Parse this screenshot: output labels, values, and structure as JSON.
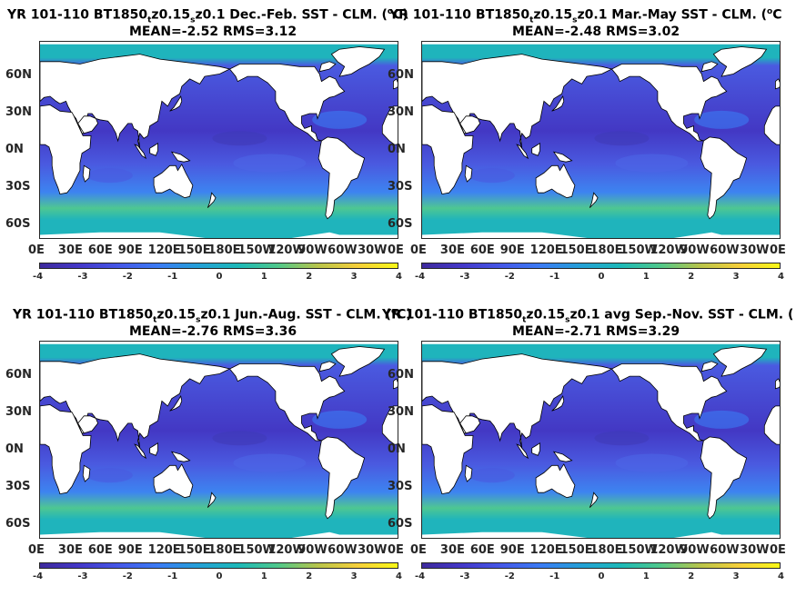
{
  "panels": [
    {
      "title_a": "YR 101-110 BT1850",
      "title_sub1": "t",
      "title_b": "z0.15",
      "title_sub2": "s",
      "title_c": "z0.1  Dec.-Feb. SST - CLM. (",
      "title_sup": "o",
      "title_d": "C)",
      "stats": "MEAN=-2.52   RMS=3.12"
    },
    {
      "title_a": "YR 101-110 BT1850",
      "title_sub1": "t",
      "title_b": "z0.15",
      "title_sub2": "s",
      "title_c": "z0.1 Mar.-May SST - CLM. (",
      "title_sup": "o",
      "title_d": "C",
      "stats": "MEAN=-2.48   RMS=3.02"
    },
    {
      "title_a": "YR 101-110 BT1850",
      "title_sub1": "t",
      "title_b": "z0.15",
      "title_sub2": "s",
      "title_c": "z0.1 Jun.-Aug. SST - CLM. (",
      "title_sup": "o",
      "title_d": "C)",
      "stats": "MEAN=-2.76   RMS=3.36"
    },
    {
      "title_a": "YR 101-110 BT1850",
      "title_sub1": "t",
      "title_b": "z0.15",
      "title_sub2": "s",
      "title_c": "z0.1 avg Sep.-Nov. SST - CLM. (",
      "title_sup": "",
      "title_d": "",
      "stats": "MEAN=-2.71   RMS=3.29"
    }
  ],
  "y_ticks": [
    "60N",
    "30N",
    "0N",
    "30S",
    "60S"
  ],
  "x_ticks": [
    "0E",
    "30E",
    "60E",
    "90E",
    "120E",
    "150E",
    "180E",
    "150W",
    "120W",
    "90W",
    "60W",
    "30W",
    "0E"
  ],
  "colorbar": {
    "ticks": [
      "-4",
      "-3",
      "-2",
      "-1",
      "0",
      "1",
      "2",
      "3",
      "4"
    ],
    "colors": [
      "#3e2a9c",
      "#4438c9",
      "#4558e8",
      "#3a7cf4",
      "#23a0d6",
      "#1cb9b8",
      "#50c88a",
      "#b8c44a",
      "#f6cf3a",
      "#f8f816"
    ]
  },
  "palette": {
    "ocean_deep": "#4338c4",
    "ocean_mid": "#4a5ae0",
    "ocean_light": "#3d84f0",
    "teal": "#1fb4bc",
    "green": "#4ec792",
    "land": "#ffffff",
    "coast": "#000000"
  }
}
